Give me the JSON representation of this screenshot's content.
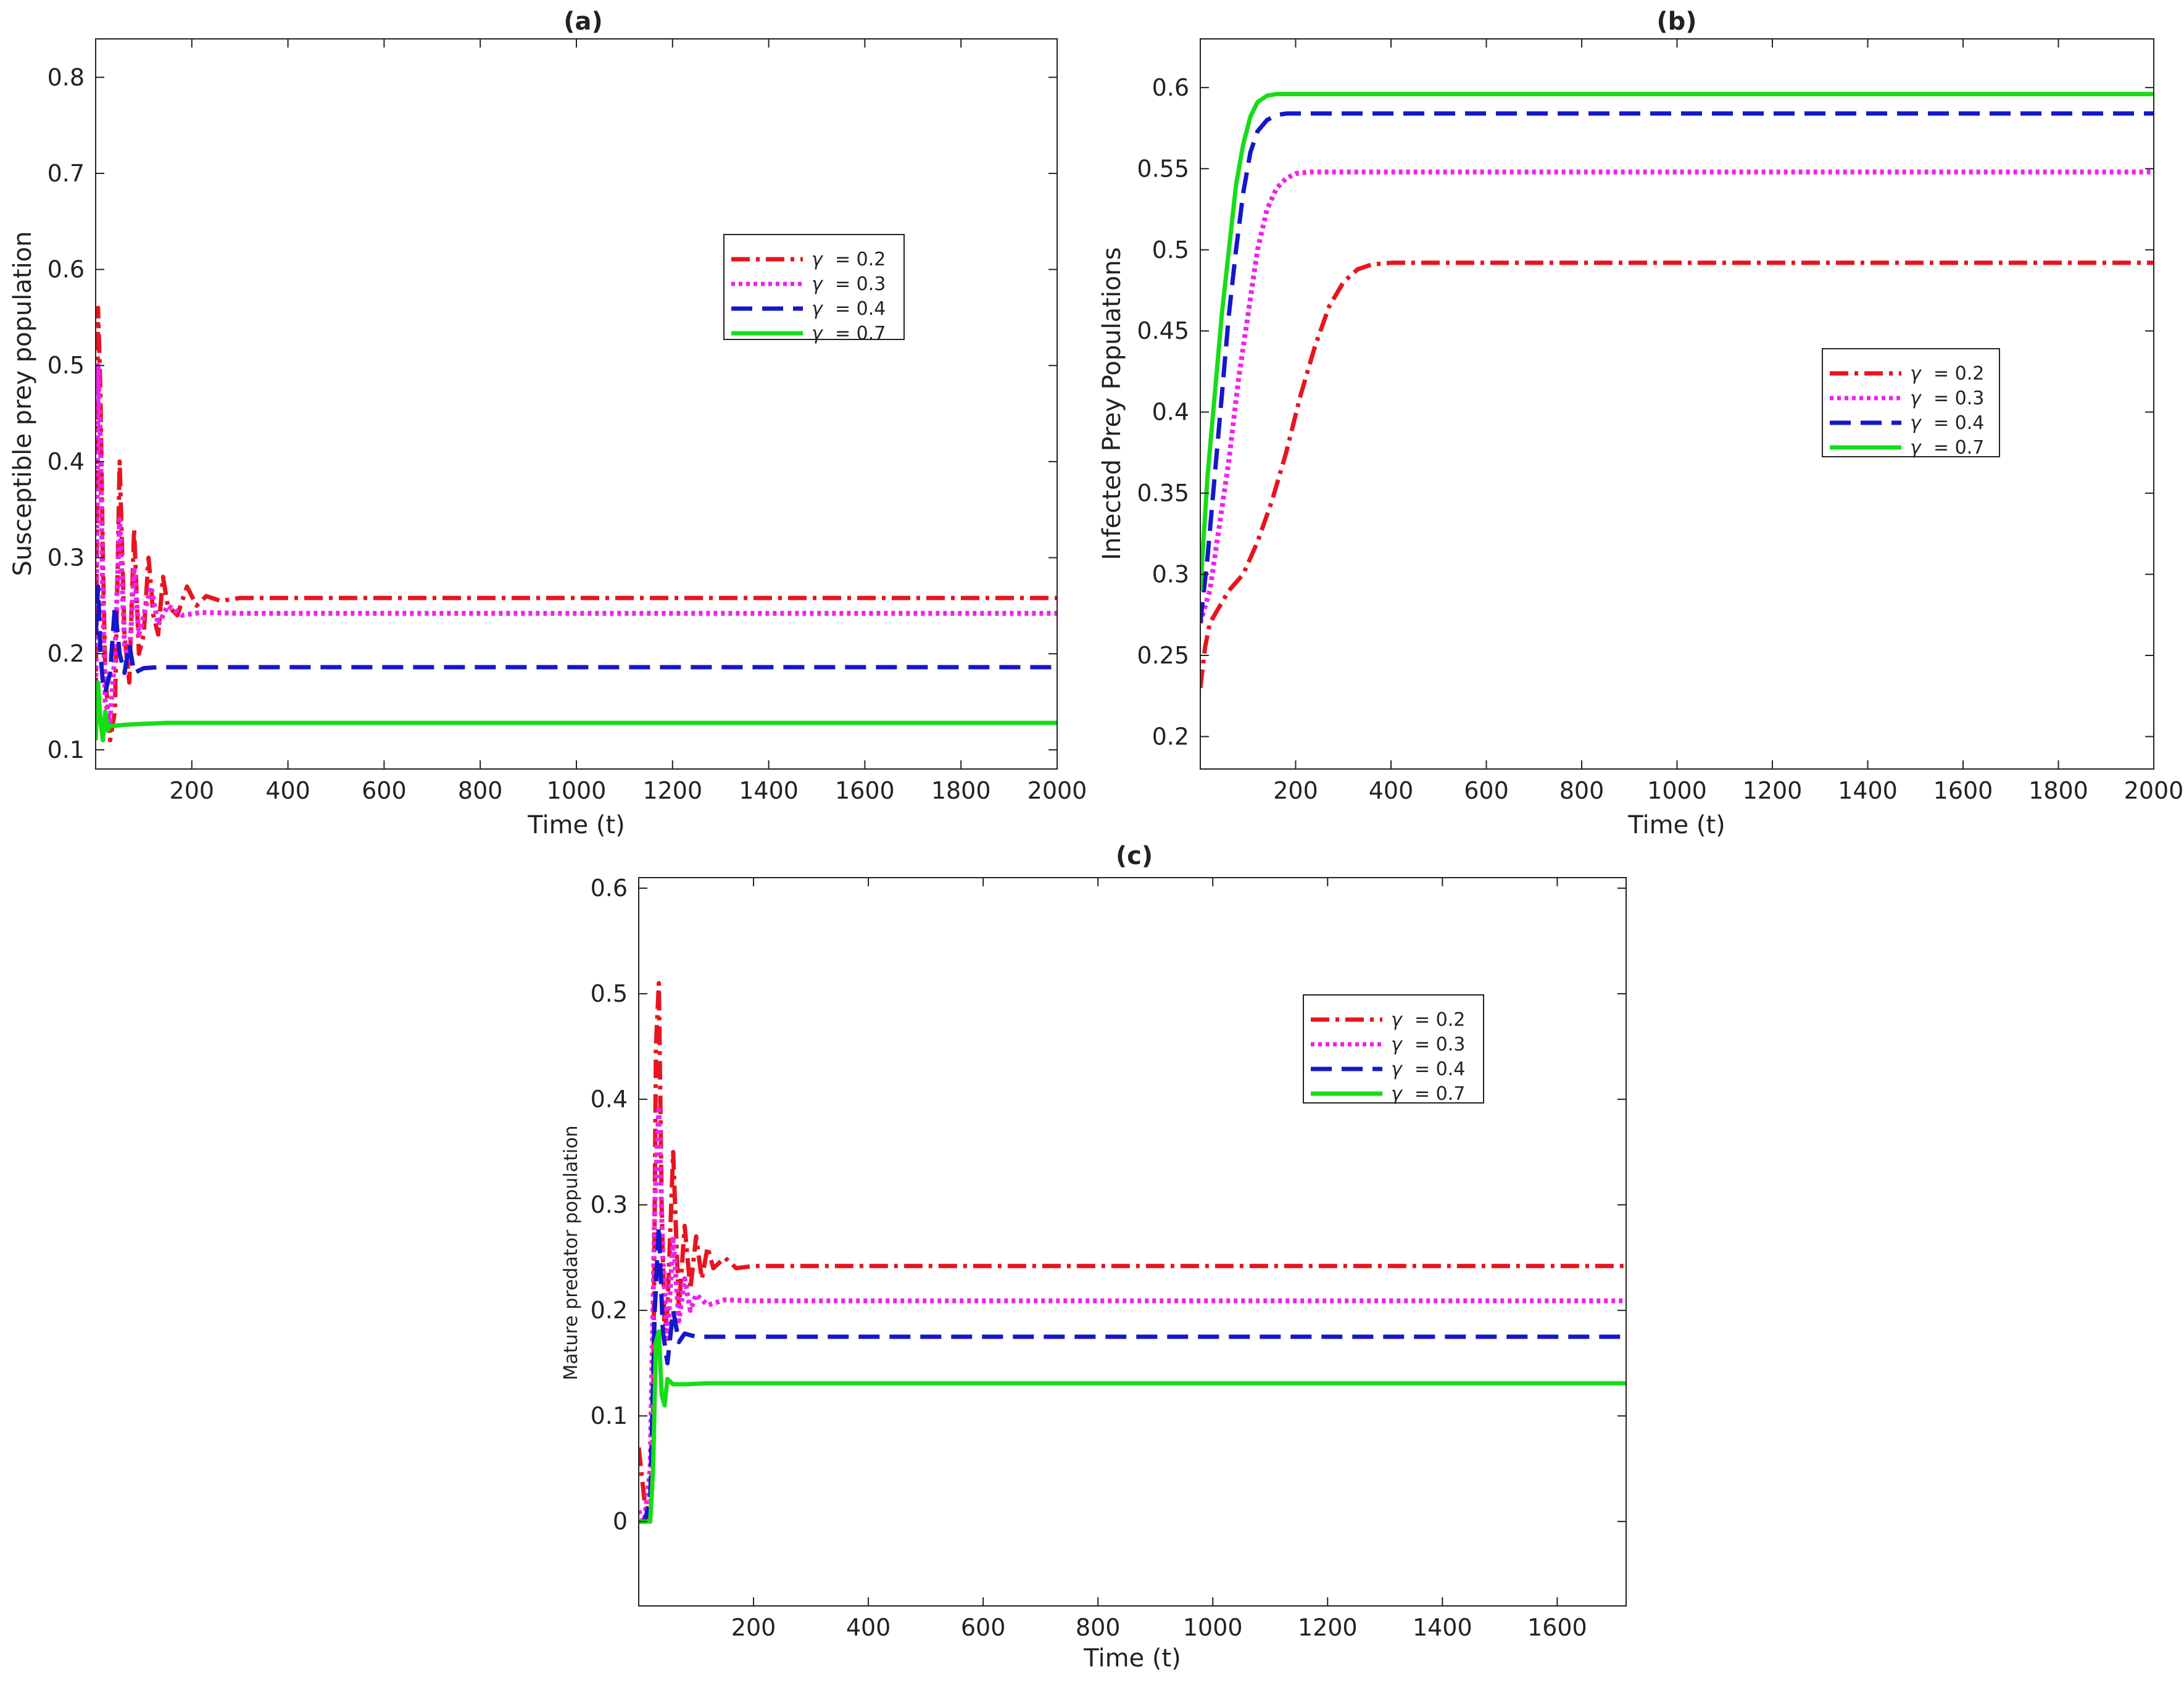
{
  "chart_data": [
    {
      "id": "a",
      "type": "line",
      "title": "(a)",
      "xlabel": "Time (t)",
      "ylabel": "Susceptible prey population",
      "xlim": [
        0,
        2000
      ],
      "ylim": [
        0.08,
        0.84
      ],
      "xticks": [
        200,
        400,
        600,
        800,
        1000,
        1200,
        1400,
        1600,
        1800,
        2000
      ],
      "yticks": [
        0.1,
        0.2,
        0.3,
        0.4,
        0.5,
        0.6,
        0.7,
        0.8
      ],
      "xtick_labels": [
        "200",
        "400",
        "600",
        "800",
        "1000",
        "1200",
        "1400",
        "1600",
        "1800",
        "2000"
      ],
      "ytick_labels": [
        "0.1",
        "0.2",
        "0.3",
        "0.4",
        "0.5",
        "0.6",
        "0.7",
        "0.8"
      ],
      "legend_position": "upper-right",
      "series": [
        {
          "name": "γ = 0.2",
          "symbol": "γ",
          "value_text": "= 0.2",
          "color": "#e8141e",
          "style": "dashdot",
          "x": [
            0,
            5,
            10,
            15,
            20,
            30,
            40,
            50,
            60,
            70,
            80,
            90,
            100,
            110,
            120,
            130,
            140,
            150,
            170,
            190,
            210,
            230,
            260,
            300,
            400,
            2000
          ],
          "y": [
            0.12,
            0.56,
            0.47,
            0.3,
            0.18,
            0.11,
            0.14,
            0.4,
            0.22,
            0.17,
            0.33,
            0.2,
            0.22,
            0.3,
            0.24,
            0.22,
            0.28,
            0.25,
            0.24,
            0.27,
            0.25,
            0.26,
            0.255,
            0.258,
            0.258,
            0.258
          ]
        },
        {
          "name": "γ = 0.3",
          "symbol": "γ",
          "value_text": "= 0.3",
          "color": "#ee22ee",
          "style": "dotted",
          "x": [
            0,
            5,
            10,
            15,
            20,
            30,
            40,
            50,
            60,
            70,
            80,
            90,
            100,
            115,
            130,
            150,
            180,
            220,
            300,
            2000
          ],
          "y": [
            0.13,
            0.5,
            0.42,
            0.25,
            0.15,
            0.13,
            0.2,
            0.34,
            0.21,
            0.19,
            0.29,
            0.22,
            0.24,
            0.27,
            0.23,
            0.25,
            0.24,
            0.243,
            0.242,
            0.242
          ],
          "end_label": "0.242"
        },
        {
          "name": "γ = 0.4",
          "symbol": "γ",
          "value_text": "= 0.4",
          "color": "#1616cc",
          "style": "dashed",
          "x": [
            0,
            5,
            10,
            15,
            20,
            30,
            40,
            50,
            60,
            70,
            80,
            100,
            130,
            200,
            2000
          ],
          "y": [
            0.22,
            0.27,
            0.2,
            0.17,
            0.16,
            0.18,
            0.25,
            0.2,
            0.18,
            0.21,
            0.18,
            0.185,
            0.186,
            0.186,
            0.186
          ]
        },
        {
          "name": "γ = 0.7",
          "symbol": "γ",
          "value_text": "= 0.7",
          "color": "#16dd16",
          "style": "solid",
          "x": [
            0,
            5,
            10,
            15,
            20,
            25,
            30,
            40,
            60,
            100,
            150,
            2000
          ],
          "y": [
            0.11,
            0.17,
            0.13,
            0.11,
            0.14,
            0.12,
            0.125,
            0.125,
            0.126,
            0.127,
            0.128,
            0.128
          ]
        }
      ]
    },
    {
      "id": "b",
      "type": "line",
      "title": "(b)",
      "xlabel": "Time (t)",
      "ylabel": "Infected Prey Populations",
      "xlim": [
        0,
        2000
      ],
      "ylim": [
        0.18,
        0.63
      ],
      "xticks": [
        200,
        400,
        600,
        800,
        1000,
        1200,
        1400,
        1600,
        1800,
        2000
      ],
      "yticks": [
        0.2,
        0.25,
        0.3,
        0.35,
        0.4,
        0.45,
        0.5,
        0.55,
        0.6
      ],
      "xtick_labels": [
        "200",
        "400",
        "600",
        "800",
        "1000",
        "1200",
        "1400",
        "1600",
        "1800",
        "2000"
      ],
      "ytick_labels": [
        "0.2",
        "0.25",
        "0.3",
        "0.35",
        "0.4",
        "0.45",
        "0.5",
        "0.55",
        "0.6"
      ],
      "legend_position": "right",
      "series": [
        {
          "name": "γ = 0.2",
          "symbol": "γ",
          "value_text": "= 0.2",
          "color": "#e8141e",
          "style": "dashdot",
          "x": [
            0,
            10,
            20,
            40,
            60,
            90,
            120,
            150,
            180,
            210,
            240,
            270,
            300,
            330,
            360,
            400,
            450,
            500,
            2000
          ],
          "y": [
            0.23,
            0.255,
            0.27,
            0.28,
            0.29,
            0.3,
            0.32,
            0.345,
            0.375,
            0.41,
            0.44,
            0.465,
            0.48,
            0.488,
            0.491,
            0.492,
            0.492,
            0.492,
            0.492
          ]
        },
        {
          "name": "γ = 0.3",
          "symbol": "γ",
          "value_text": "= 0.3",
          "color": "#ee22ee",
          "style": "dotted",
          "x": [
            0,
            20,
            40,
            60,
            80,
            100,
            120,
            140,
            160,
            180,
            200,
            230,
            260,
            300,
            2000
          ],
          "y": [
            0.27,
            0.29,
            0.33,
            0.37,
            0.42,
            0.46,
            0.5,
            0.525,
            0.538,
            0.544,
            0.547,
            0.548,
            0.548,
            0.548,
            0.548
          ]
        },
        {
          "name": "γ = 0.4",
          "symbol": "γ",
          "value_text": "= 0.4",
          "color": "#1616cc",
          "style": "dashed",
          "x": [
            0,
            15,
            30,
            45,
            60,
            75,
            90,
            105,
            120,
            140,
            160,
            180,
            220,
            2000
          ],
          "y": [
            0.27,
            0.31,
            0.36,
            0.41,
            0.46,
            0.5,
            0.535,
            0.56,
            0.573,
            0.58,
            0.583,
            0.584,
            0.584,
            0.584
          ]
        },
        {
          "name": "γ = 0.7",
          "symbol": "γ",
          "value_text": "= 0.7",
          "color": "#16dd16",
          "style": "solid",
          "x": [
            0,
            15,
            30,
            45,
            60,
            75,
            90,
            105,
            120,
            140,
            160,
            200,
            2000
          ],
          "y": [
            0.29,
            0.36,
            0.41,
            0.46,
            0.5,
            0.54,
            0.565,
            0.582,
            0.591,
            0.595,
            0.596,
            0.596,
            0.596
          ]
        }
      ]
    },
    {
      "id": "c",
      "type": "line",
      "title": "(c)",
      "xlabel": "Time (t)",
      "ylabel": "Mature predator population",
      "xlim": [
        0,
        1720
      ],
      "ylim": [
        -0.08,
        0.61
      ],
      "xticks": [
        200,
        400,
        600,
        800,
        1000,
        1200,
        1400,
        1600
      ],
      "yticks": [
        0,
        0.1,
        0.2,
        0.3,
        0.4,
        0.5,
        0.6
      ],
      "xtick_labels": [
        "200",
        "400",
        "600",
        "800",
        "1000",
        "1200",
        "1400",
        "1600"
      ],
      "ytick_labels": [
        "0",
        "0.1",
        "0.2",
        "0.3",
        "0.4",
        "0.5",
        "0.6"
      ],
      "legend_position": "upper-right",
      "series": [
        {
          "name": "γ = 0.2",
          "symbol": "γ",
          "value_text": "= 0.2",
          "color": "#e8141e",
          "style": "dashdot",
          "x": [
            0,
            10,
            20,
            25,
            30,
            35,
            40,
            45,
            50,
            60,
            70,
            80,
            90,
            100,
            110,
            120,
            130,
            150,
            170,
            200,
            300,
            1720
          ],
          "y": [
            0.07,
            0.02,
            0.0,
            0.1,
            0.45,
            0.51,
            0.3,
            0.18,
            0.2,
            0.35,
            0.2,
            0.28,
            0.22,
            0.27,
            0.23,
            0.26,
            0.24,
            0.25,
            0.24,
            0.242,
            0.242,
            0.242
          ]
        },
        {
          "name": "γ = 0.3",
          "symbol": "γ",
          "value_text": "= 0.3",
          "color": "#ee22ee",
          "style": "dotted",
          "x": [
            0,
            10,
            20,
            28,
            35,
            42,
            50,
            60,
            70,
            80,
            90,
            100,
            120,
            150,
            200,
            1720
          ],
          "y": [
            0.01,
            0.0,
            0.05,
            0.3,
            0.39,
            0.25,
            0.17,
            0.27,
            0.19,
            0.23,
            0.2,
            0.215,
            0.205,
            0.21,
            0.209,
            0.209
          ]
        },
        {
          "name": "γ = 0.4",
          "symbol": "γ",
          "value_text": "= 0.4",
          "color": "#1616cc",
          "style": "dashed",
          "x": [
            0,
            10,
            20,
            28,
            35,
            42,
            50,
            60,
            70,
            80,
            100,
            150,
            1720
          ],
          "y": [
            0.0,
            0.0,
            0.02,
            0.2,
            0.28,
            0.18,
            0.15,
            0.2,
            0.17,
            0.178,
            0.175,
            0.175,
            0.175
          ]
        },
        {
          "name": "γ = 0.7",
          "symbol": "γ",
          "value_text": "= 0.7",
          "color": "#16dd16",
          "style": "solid",
          "x": [
            0,
            10,
            20,
            25,
            30,
            35,
            40,
            45,
            50,
            60,
            80,
            120,
            1720
          ],
          "y": [
            0.0,
            0.0,
            0.0,
            0.05,
            0.17,
            0.18,
            0.12,
            0.11,
            0.135,
            0.13,
            0.13,
            0.131,
            0.131
          ]
        }
      ]
    }
  ]
}
